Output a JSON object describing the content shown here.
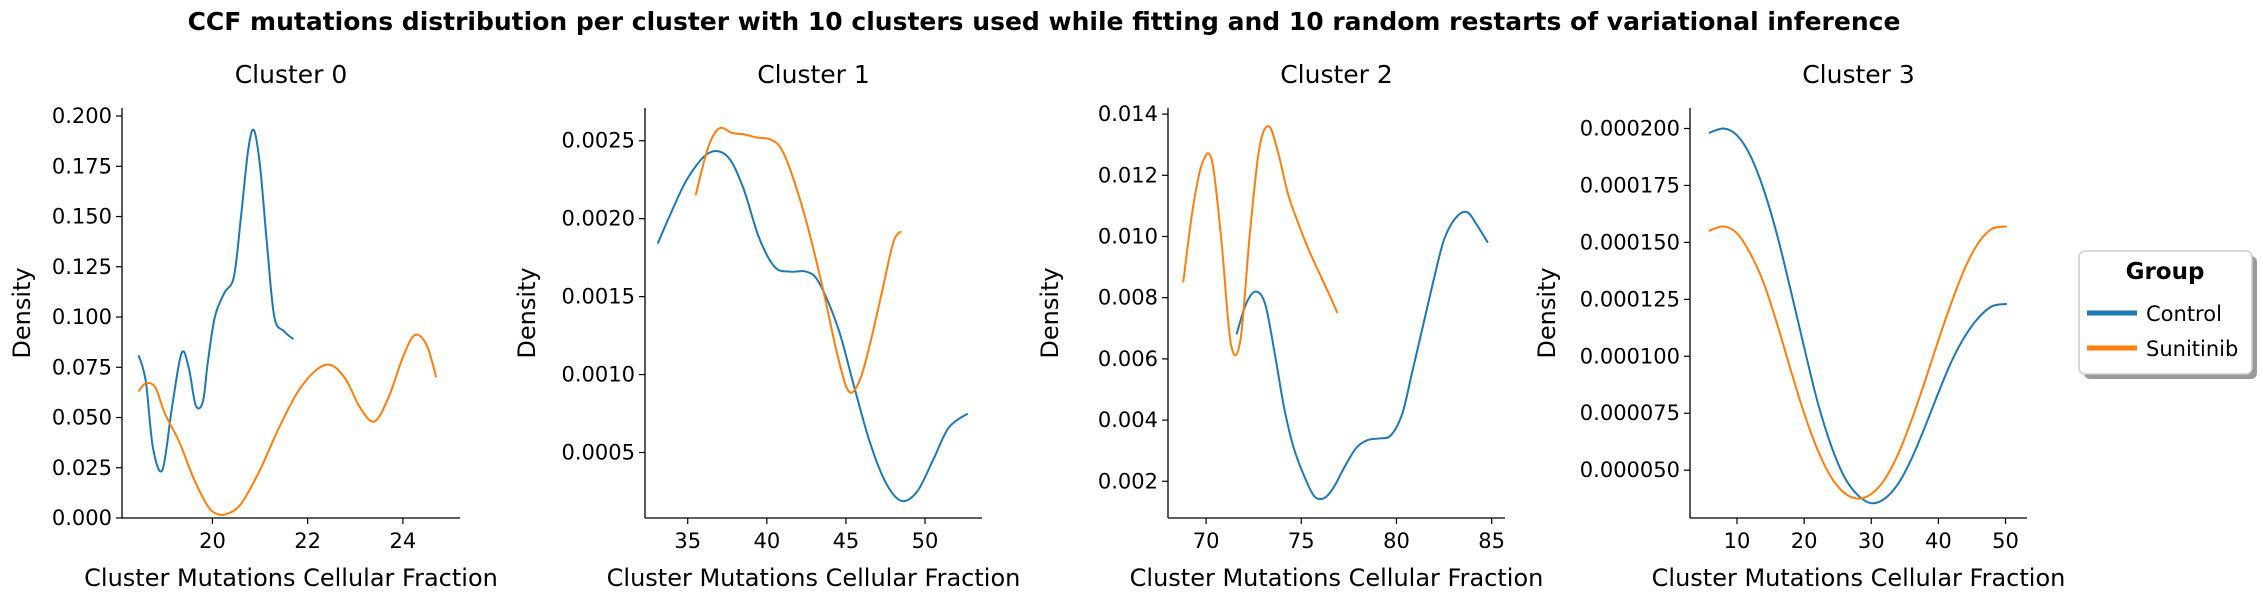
{
  "figure": {
    "suptitle": "CCF mutations distribution per cluster with 10 clusters used while fitting and 10 random restarts of variational inference"
  },
  "legend": {
    "title": "Group",
    "placement": "right",
    "entries": [
      {
        "label": "Control",
        "color": "#1f77b4"
      },
      {
        "label": "Sunitinib",
        "color": "#ff7f0e"
      }
    ]
  },
  "chart_data": [
    {
      "type": "line",
      "title": "Cluster 0",
      "xlabel": "Cluster Mutations Cellular Fraction",
      "ylabel": "Density",
      "xlim": [
        18.1,
        25.2
      ],
      "ylim": [
        0,
        0.204
      ],
      "xticks": [
        20,
        22,
        24
      ],
      "xtick_labels": [
        "20",
        "22",
        "24"
      ],
      "yticks": [
        0,
        0.025,
        0.05,
        0.075,
        0.1,
        0.125,
        0.15,
        0.175,
        0.2
      ],
      "ytick_labels": [
        "0.000",
        "0.025",
        "0.050",
        "0.075",
        "0.100",
        "0.125",
        "0.150",
        "0.175",
        "0.200"
      ],
      "series": [
        {
          "name": "Control",
          "color": "#1f77b4",
          "x": [
            18.45,
            18.6,
            18.75,
            18.95,
            19.15,
            19.35,
            19.5,
            19.65,
            19.8,
            19.9,
            20.05,
            20.25,
            20.45,
            20.6,
            20.75,
            20.87,
            21.0,
            21.15,
            21.3,
            21.5,
            21.7
          ],
          "y": [
            0.081,
            0.068,
            0.035,
            0.024,
            0.055,
            0.082,
            0.075,
            0.056,
            0.058,
            0.077,
            0.1,
            0.112,
            0.12,
            0.15,
            0.183,
            0.193,
            0.175,
            0.135,
            0.1,
            0.093,
            0.089
          ]
        },
        {
          "name": "Sunitinib",
          "color": "#ff7f0e",
          "x": [
            18.45,
            18.6,
            18.8,
            19.0,
            19.3,
            19.6,
            19.9,
            20.1,
            20.3,
            20.6,
            21.0,
            21.4,
            21.8,
            22.2,
            22.5,
            22.8,
            23.1,
            23.4,
            23.7,
            24.0,
            24.25,
            24.5,
            24.7
          ],
          "y": [
            0.063,
            0.067,
            0.065,
            0.052,
            0.038,
            0.02,
            0.006,
            0.002,
            0.002,
            0.007,
            0.024,
            0.045,
            0.063,
            0.074,
            0.076,
            0.069,
            0.055,
            0.048,
            0.06,
            0.08,
            0.091,
            0.086,
            0.07
          ]
        }
      ]
    },
    {
      "type": "line",
      "title": "Cluster 1",
      "xlabel": "Cluster Mutations Cellular Fraction",
      "ylabel": "Density",
      "xlim": [
        32.3,
        53.6
      ],
      "ylim": [
        8e-05,
        0.00271
      ],
      "xticks": [
        35,
        40,
        45,
        50
      ],
      "xtick_labels": [
        "35",
        "40",
        "45",
        "50"
      ],
      "yticks": [
        0.0005,
        0.001,
        0.0015,
        0.002,
        0.0025
      ],
      "ytick_labels": [
        "0.0005",
        "0.0010",
        "0.0015",
        "0.0020",
        "0.0025"
      ],
      "series": [
        {
          "name": "Control",
          "color": "#1f77b4",
          "x": [
            33.1,
            34.0,
            35.0,
            36.3,
            37.5,
            38.5,
            39.5,
            40.5,
            41.5,
            42.5,
            43.3,
            44.5,
            45.5,
            46.5,
            47.5,
            48.5,
            49.5,
            50.5,
            51.5,
            52.7
          ],
          "y": [
            0.00184,
            0.00205,
            0.00226,
            0.00242,
            0.0024,
            0.0022,
            0.00188,
            0.00169,
            0.00166,
            0.00166,
            0.00159,
            0.0013,
            0.00093,
            0.00057,
            0.00031,
            0.00019,
            0.00025,
            0.00045,
            0.00066,
            0.00075
          ]
        },
        {
          "name": "Sunitinib",
          "color": "#ff7f0e",
          "x": [
            35.5,
            36.3,
            37.0,
            37.8,
            38.6,
            39.4,
            40.2,
            40.9,
            41.6,
            42.5,
            43.5,
            44.5,
            45.2,
            45.9,
            46.6,
            47.3,
            48.0,
            48.5
          ],
          "y": [
            0.00215,
            0.00246,
            0.00258,
            0.00255,
            0.00254,
            0.00252,
            0.00251,
            0.00245,
            0.00228,
            0.00198,
            0.00157,
            0.00111,
            0.00089,
            0.00097,
            0.00123,
            0.00154,
            0.00185,
            0.00192
          ]
        }
      ]
    },
    {
      "type": "line",
      "title": "Cluster 2",
      "xlabel": "Cluster Mutations Cellular Fraction",
      "ylabel": "Density",
      "xlim": [
        68.0,
        85.7
      ],
      "ylim": [
        0.0008,
        0.0142
      ],
      "xticks": [
        70,
        75,
        80,
        85
      ],
      "xtick_labels": [
        "70",
        "75",
        "80",
        "85"
      ],
      "yticks": [
        0.002,
        0.004,
        0.006,
        0.008,
        0.01,
        0.012,
        0.014
      ],
      "ytick_labels": [
        "0.002",
        "0.004",
        "0.006",
        "0.008",
        "0.010",
        "0.012",
        "0.014"
      ],
      "series": [
        {
          "name": "Control",
          "color": "#1f77b4",
          "x": [
            71.6,
            72.1,
            72.6,
            73.1,
            73.6,
            74.1,
            74.6,
            75.2,
            75.7,
            76.2,
            76.7,
            77.3,
            77.9,
            78.5,
            79.1,
            79.7,
            80.3,
            80.8,
            81.4,
            82.0,
            82.5,
            83.1,
            83.7,
            84.2,
            84.8
          ],
          "y": [
            0.0068,
            0.0078,
            0.0082,
            0.0078,
            0.0062,
            0.0044,
            0.0031,
            0.0021,
            0.0015,
            0.00145,
            0.0018,
            0.0025,
            0.0031,
            0.00335,
            0.0034,
            0.0035,
            0.0042,
            0.0055,
            0.0071,
            0.0087,
            0.0099,
            0.0106,
            0.0108,
            0.0104,
            0.0098
          ]
        },
        {
          "name": "Sunitinib",
          "color": "#ff7f0e",
          "x": [
            68.8,
            69.3,
            69.8,
            70.3,
            70.8,
            71.3,
            71.8,
            72.3,
            72.8,
            73.3,
            73.8,
            74.3,
            74.8,
            75.3,
            75.8,
            76.4,
            76.9
          ],
          "y": [
            0.0085,
            0.0109,
            0.0124,
            0.0125,
            0.0099,
            0.0065,
            0.0066,
            0.0101,
            0.0129,
            0.0136,
            0.0127,
            0.0114,
            0.0105,
            0.0097,
            0.009,
            0.0082,
            0.0075
          ]
        }
      ]
    },
    {
      "type": "line",
      "title": "Cluster 3",
      "xlabel": "Cluster Mutations Cellular Fraction",
      "ylabel": "Density",
      "xlim": [
        3.0,
        53.2
      ],
      "ylim": [
        2.9e-05,
        0.000209
      ],
      "xticks": [
        10,
        20,
        30,
        40,
        50
      ],
      "xtick_labels": [
        "10",
        "20",
        "30",
        "40",
        "50"
      ],
      "yticks": [
        5e-05,
        7.5e-05,
        0.0001,
        0.000125,
        0.00015,
        0.000175,
        0.0002
      ],
      "ytick_labels": [
        "0.000050",
        "0.000075",
        "0.000100",
        "0.000125",
        "0.000150",
        "0.000175",
        "0.000200"
      ],
      "series": [
        {
          "name": "Control",
          "color": "#1f77b4",
          "x": [
            5.8,
            8.0,
            10.0,
            12.0,
            14.0,
            16.0,
            18.0,
            20.0,
            22.0,
            24.0,
            26.0,
            28.0,
            30.0,
            32.0,
            34.0,
            36.0,
            38.0,
            40.0,
            42.0,
            44.0,
            46.0,
            48.0,
            50.2
          ],
          "y": [
            0.000198,
            0.0002,
            0.000197,
            0.000188,
            0.000173,
            0.000153,
            0.000129,
            0.000104,
            8e-05,
            6.1e-05,
            4.7e-05,
            3.9e-05,
            3.55e-05,
            3.75e-05,
            4.4e-05,
            5.5e-05,
            6.9e-05,
            8.4e-05,
            9.8e-05,
            0.000109,
            0.000117,
            0.000122,
            0.000123
          ]
        },
        {
          "name": "Sunitinib",
          "color": "#ff7f0e",
          "x": [
            5.8,
            8.0,
            10.0,
            12.0,
            14.0,
            16.0,
            18.0,
            20.0,
            22.0,
            24.0,
            26.0,
            28.0,
            30.0,
            32.0,
            34.0,
            36.0,
            38.0,
            40.0,
            42.0,
            44.0,
            46.0,
            48.0,
            50.2
          ],
          "y": [
            0.000155,
            0.000157,
            0.000154,
            0.000145,
            0.000132,
            0.000114,
            9.4e-05,
            7.5e-05,
            5.9e-05,
            4.7e-05,
            4e-05,
            3.75e-05,
            3.95e-05,
            4.6e-05,
            5.7e-05,
            7.2e-05,
            8.9e-05,
            0.000107,
            0.000124,
            0.000139,
            0.00015,
            0.000156,
            0.000157
          ]
        }
      ]
    }
  ]
}
